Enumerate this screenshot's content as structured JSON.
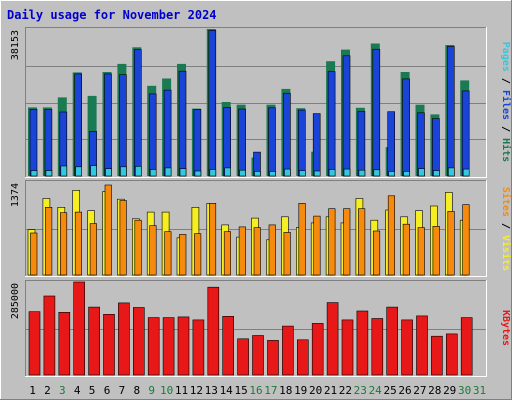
{
  "chart_data": {
    "type": "bar",
    "title": "Daily usage for November 2024",
    "categories": [
      "1",
      "2",
      "3",
      "4",
      "5",
      "6",
      "7",
      "8",
      "9",
      "10",
      "11",
      "12",
      "13",
      "14",
      "15",
      "16",
      "17",
      "18",
      "19",
      "20",
      "21",
      "22",
      "23",
      "24",
      "25",
      "26",
      "27",
      "28",
      "29",
      "30",
      "31"
    ],
    "weekend_days": [
      "3",
      "9",
      "10",
      "16",
      "17",
      "23",
      "24",
      "30",
      "31"
    ],
    "colors": {
      "title": "#0000cc",
      "day_weekday": "#000000",
      "day_weekend": "#1a7a3a",
      "hits": "#1a7a52",
      "files": "#1a44d8",
      "pages": "#33c8dd",
      "visits": "#f5ee22",
      "sites": "#f58a0e",
      "kbytes": "#e81818",
      "panel_background": "#c0c0c0"
    },
    "panels": [
      {
        "id": "top",
        "axis_label": "38153",
        "ymax": 38153,
        "legend": [
          {
            "text": "Pages",
            "color": "#33c8dd"
          },
          {
            "text": "Files",
            "color": "#1a44d8"
          },
          {
            "text": "Hits",
            "color": "#1a7a52"
          }
        ],
        "series": [
          {
            "name": "Hits",
            "color": "#1a7a52",
            "values": [
              17800,
              17800,
              20400,
              26900,
              20800,
              27000,
              29100,
              33400,
              23400,
              25300,
              29100,
              17500,
              38153,
              19200,
              18500,
              4800,
              18500,
              22600,
              17600,
              6300,
              29800,
              32800,
              17700,
              34400,
              7500,
              27000,
              18500,
              16000,
              34000,
              24800,
              0
            ]
          },
          {
            "name": "Files",
            "color": "#1a44d8",
            "values": [
              17300,
              17300,
              16600,
              26500,
              11600,
              26500,
              26300,
              32800,
              21300,
              22300,
              27200,
              17300,
              37800,
              17800,
              17400,
              6200,
              17700,
              21500,
              17100,
              16200,
              27100,
              31200,
              16800,
              32900,
              16700,
              25200,
              16400,
              14900,
              33600,
              22100,
              0
            ]
          },
          {
            "name": "Pages",
            "color": "#33c8dd",
            "values": [
              1400,
              1400,
              2600,
              2400,
              2700,
              1900,
              2400,
              2500,
              1700,
              2100,
              1900,
              1300,
              1700,
              2100,
              1500,
              1200,
              1200,
              1800,
              1400,
              1300,
              1700,
              1800,
              1500,
              1600,
              1200,
              1200,
              1900,
              1400,
              2100,
              1800,
              0
            ]
          }
        ]
      },
      {
        "id": "middle",
        "axis_label": "1374",
        "ymax": 1374,
        "legend": [
          {
            "text": "Sites",
            "color": "#f58a0e"
          },
          {
            "text": "Visits",
            "color": "#f5ee22"
          }
        ],
        "series": [
          {
            "name": "Visits",
            "color": "#f5ee22",
            "values": [
              670,
              1130,
              1000,
              1250,
              950,
              1230,
              1120,
              830,
              930,
              930,
              550,
              1000,
              1060,
              740,
              560,
              840,
              520,
              860,
              700,
              770,
              860,
              770,
              1130,
              810,
              960,
              860,
              950,
              1020,
              1220,
              810,
              0
            ]
          },
          {
            "name": "Sites",
            "color": "#f58a0e",
            "values": [
              620,
              1000,
              920,
              930,
              760,
              1330,
              1100,
              810,
              730,
              640,
              600,
              610,
              1060,
              640,
              710,
              700,
              740,
              630,
              1060,
              870,
              980,
              980,
              980,
              650,
              1170,
              750,
              700,
              720,
              940,
              1040,
              0
            ]
          }
        ]
      },
      {
        "id": "bottom",
        "axis_label": "285000",
        "ymax": 285000,
        "legend": [
          {
            "text": "KBytes",
            "color": "#e81818"
          }
        ],
        "series": [
          {
            "name": "KBytes",
            "color": "#e81818",
            "values": [
              194000,
              242000,
              192000,
              285000,
              208000,
              186000,
              221000,
              207000,
              176000,
              176000,
              178000,
              169000,
              269000,
              180000,
              111000,
              121000,
              106000,
              150000,
              108000,
              158000,
              222000,
              169000,
              196000,
              173000,
              208000,
              169000,
              181000,
              119000,
              126000,
              176000,
              0
            ]
          }
        ]
      }
    ]
  }
}
